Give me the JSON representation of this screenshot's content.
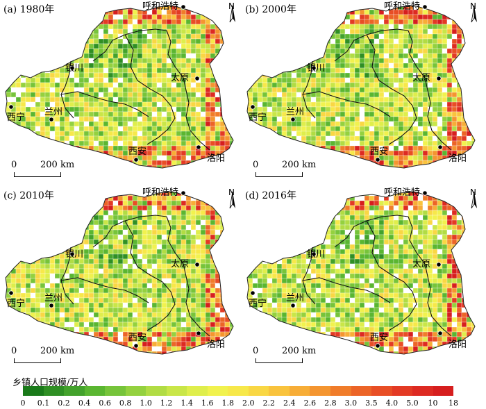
{
  "panels": [
    {
      "title": "(a) 1980年",
      "seed": 11
    },
    {
      "title": "(b) 2000年",
      "seed": 23
    },
    {
      "title": "(c) 2010年",
      "seed": 37
    },
    {
      "title": "(d) 2016年",
      "seed": 51
    }
  ],
  "cities": {
    "hohhot": "呼和浩特",
    "yinchuan": "银川",
    "taiyuan": "太原",
    "xining": "西宁",
    "lanzhou": "兰州",
    "xian": "西安",
    "luoyang": "洛阳"
  },
  "north_label": "N",
  "scale_bar": {
    "zero": "0",
    "distance": "200 km"
  },
  "legend": {
    "title": "乡镇人口规模/万人",
    "ticks": [
      "0",
      "0.1",
      "0.2",
      "0.4",
      "0.6",
      "0.8",
      "1.0",
      "1.2",
      "1.4",
      "1.6",
      "1.8",
      "2.0",
      "2.2",
      "2.4",
      "2.6",
      "2.8",
      "3.0",
      "3.5",
      "4.0",
      "5.0",
      "10",
      "18"
    ],
    "colors": [
      "#1a7a1a",
      "#2f8f24",
      "#43a22c",
      "#5ab631",
      "#76c43a",
      "#94d13f",
      "#b1dc44",
      "#c9e648",
      "#dfee4c",
      "#f1f24e",
      "#f7e84a",
      "#f9d744",
      "#f9c33d",
      "#f7ad37",
      "#f49530",
      "#f07c2a",
      "#ec6427",
      "#e84e25",
      "#e33a24",
      "#dd2a22",
      "#d61e1e"
    ]
  }
}
